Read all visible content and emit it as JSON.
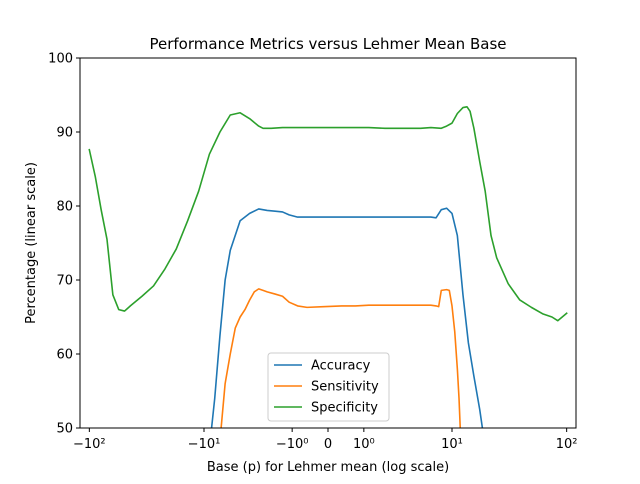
{
  "chart_data": {
    "type": "line",
    "title": "Performance Metrics versus Lehmer Mean Base",
    "xlabel": "Base (p) for Lehmer mean (log scale)",
    "ylabel": "Percentage (linear scale)",
    "xscale": "symlog",
    "xlim": [
      -120,
      120
    ],
    "ylim": [
      50,
      100
    ],
    "x_ticks": [
      -100,
      -10,
      -1,
      0,
      1,
      10,
      100
    ],
    "x_tick_labels": [
      "−10²",
      "−10¹",
      "−10⁰",
      "0",
      "10⁰",
      "10¹",
      "10²"
    ],
    "y_ticks": [
      50,
      60,
      70,
      80,
      90,
      100
    ],
    "y_tick_labels": [
      "50",
      "60",
      "70",
      "80",
      "90",
      "100"
    ],
    "grid": false,
    "legend_position": "lower center",
    "series": [
      {
        "name": "Accuracy",
        "color": "#1f77b4",
        "points": [
          [
            -8.5,
            50
          ],
          [
            -7.94,
            54
          ],
          [
            -7.08,
            62.5
          ],
          [
            -6.31,
            70
          ],
          [
            -5.62,
            74
          ],
          [
            -4.47,
            78
          ],
          [
            -3.55,
            79
          ],
          [
            -2.82,
            79.6
          ],
          [
            -2.24,
            79.4
          ],
          [
            -1.78,
            79.3
          ],
          [
            -1.41,
            79.2
          ],
          [
            -1.12,
            78.8
          ],
          [
            -0.8,
            78.5
          ],
          [
            -0.5,
            78.5
          ],
          [
            -0.1,
            78.5
          ],
          [
            0.1,
            78.5
          ],
          [
            0.4,
            78.5
          ],
          [
            0.7,
            78.5
          ],
          [
            1.2,
            78.5
          ],
          [
            2.0,
            78.5
          ],
          [
            3.0,
            78.5
          ],
          [
            4.0,
            78.5
          ],
          [
            5.0,
            78.5
          ],
          [
            5.6,
            78.5
          ],
          [
            6.31,
            78.5
          ],
          [
            7.08,
            78.4
          ],
          [
            7.94,
            79.5
          ],
          [
            8.91,
            79.7
          ],
          [
            10.0,
            79
          ],
          [
            11.2,
            76
          ],
          [
            12.6,
            68
          ],
          [
            14.1,
            61.5
          ],
          [
            15.8,
            57
          ],
          [
            17.8,
            52.5
          ],
          [
            18.8,
            50
          ]
        ]
      },
      {
        "name": "Sensitivity",
        "color": "#ff7f0e",
        "points": [
          [
            -6.9,
            50
          ],
          [
            -6.31,
            56
          ],
          [
            -5.62,
            60
          ],
          [
            -5.01,
            63.5
          ],
          [
            -4.47,
            65
          ],
          [
            -3.98,
            66
          ],
          [
            -3.55,
            67.3
          ],
          [
            -3.16,
            68.4
          ],
          [
            -2.82,
            68.8
          ],
          [
            -2.51,
            68.6
          ],
          [
            -2.24,
            68.4
          ],
          [
            -1.78,
            68.1
          ],
          [
            -1.41,
            67.8
          ],
          [
            -1.12,
            67
          ],
          [
            -0.8,
            66.5
          ],
          [
            -0.5,
            66.3
          ],
          [
            -0.1,
            66.4
          ],
          [
            0.3,
            66.5
          ],
          [
            0.7,
            66.5
          ],
          [
            1.2,
            66.6
          ],
          [
            2.0,
            66.6
          ],
          [
            3.0,
            66.6
          ],
          [
            4.0,
            66.6
          ],
          [
            5.0,
            66.6
          ],
          [
            5.62,
            66.6
          ],
          [
            6.31,
            66.6
          ],
          [
            7.08,
            66.5
          ],
          [
            7.5,
            66.4
          ],
          [
            7.94,
            68.6
          ],
          [
            8.91,
            68.7
          ],
          [
            9.44,
            68.6
          ],
          [
            10.0,
            66.5
          ],
          [
            10.6,
            63
          ],
          [
            11.2,
            58
          ],
          [
            11.6,
            54
          ],
          [
            11.9,
            50
          ]
        ]
      },
      {
        "name": "Specificity",
        "color": "#2ca02c",
        "points": [
          [
            -100,
            87.6
          ],
          [
            -89.1,
            84
          ],
          [
            -79.4,
            79.5
          ],
          [
            -70.8,
            75.5
          ],
          [
            -63.1,
            68
          ],
          [
            -56.2,
            66
          ],
          [
            -50.1,
            65.8
          ],
          [
            -44.7,
            66.5
          ],
          [
            -35.5,
            67.8
          ],
          [
            -28.2,
            69.2
          ],
          [
            -22.4,
            71.5
          ],
          [
            -17.8,
            74.2
          ],
          [
            -14.1,
            78
          ],
          [
            -11.2,
            82
          ],
          [
            -8.91,
            87
          ],
          [
            -7.08,
            90
          ],
          [
            -5.62,
            92.3
          ],
          [
            -4.47,
            92.6
          ],
          [
            -3.55,
            91.8
          ],
          [
            -2.82,
            90.8
          ],
          [
            -2.51,
            90.5
          ],
          [
            -2.0,
            90.5
          ],
          [
            -1.41,
            90.6
          ],
          [
            -1.0,
            90.6
          ],
          [
            -0.5,
            90.6
          ],
          [
            0,
            90.6
          ],
          [
            0.5,
            90.6
          ],
          [
            1.0,
            90.6
          ],
          [
            1.2,
            90.6
          ],
          [
            2.0,
            90.5
          ],
          [
            3.0,
            90.5
          ],
          [
            4.0,
            90.5
          ],
          [
            5.0,
            90.5
          ],
          [
            6.31,
            90.6
          ],
          [
            7.94,
            90.5
          ],
          [
            8.91,
            90.8
          ],
          [
            10.0,
            91.2
          ],
          [
            11.2,
            92.5
          ],
          [
            12.6,
            93.3
          ],
          [
            13.7,
            93.4
          ],
          [
            14.6,
            92.8
          ],
          [
            15.8,
            90.5
          ],
          [
            17.8,
            86
          ],
          [
            19.9,
            82
          ],
          [
            22.4,
            76
          ],
          [
            25.1,
            73
          ],
          [
            31.6,
            69.5
          ],
          [
            39.8,
            67.3
          ],
          [
            50.1,
            66.3
          ],
          [
            63.1,
            65.4
          ],
          [
            75,
            65
          ],
          [
            84,
            64.5
          ],
          [
            100,
            65.5
          ]
        ]
      }
    ]
  }
}
